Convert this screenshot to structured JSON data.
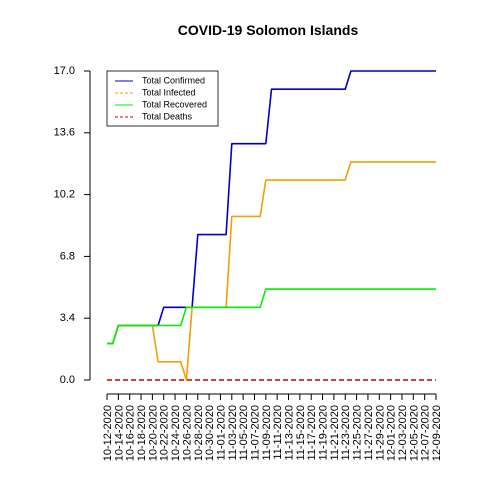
{
  "chart_data": {
    "type": "line",
    "title": "COVID-19 Solomon Islands",
    "xlabel": "",
    "ylabel": "",
    "ylim": [
      0,
      17
    ],
    "yticks": [
      "0.0",
      "3.4",
      "6.8",
      "10.2",
      "13.6",
      "17.0"
    ],
    "x_tick_labels": [
      "10-12-2020",
      "10-14-2020",
      "10-16-2020",
      "10-18-2020",
      "10-20-2020",
      "10-22-2020",
      "10-24-2020",
      "10-26-2020",
      "10-28-2020",
      "10-30-2020",
      "11-01-2020",
      "11-03-2020",
      "11-05-2020",
      "11-07-2020",
      "11-09-2020",
      "11-11-2020",
      "11-13-2020",
      "11-15-2020",
      "11-17-2020",
      "11-19-2020",
      "11-21-2020",
      "11-23-2020",
      "11-25-2020",
      "11-27-2020",
      "11-29-2020",
      "12-01-2020",
      "12-03-2020",
      "12-05-2020",
      "12-07-2020",
      "12-09-2020"
    ],
    "grid": false,
    "legend_position": "top-left",
    "series": [
      {
        "name": "Total Confirmed",
        "color": "#0000cc",
        "dash": "solid",
        "x": [
          "10-12-2020",
          "10-13-2020",
          "10-14-2020",
          "10-19-2020",
          "10-20-2020",
          "10-21-2020",
          "10-22-2020",
          "10-23-2020",
          "10-24-2020",
          "10-25-2020",
          "10-26-2020",
          "10-27-2020",
          "10-28-2020",
          "10-29-2020",
          "10-30-2020",
          "10-31-2020",
          "11-01-2020",
          "11-02-2020",
          "11-03-2020",
          "11-04-2020",
          "11-05-2020",
          "11-06-2020",
          "11-07-2020",
          "11-08-2020",
          "11-09-2020",
          "11-10-2020",
          "11-11-2020",
          "11-12-2020",
          "11-13-2020",
          "11-14-2020",
          "11-15-2020",
          "11-16-2020",
          "11-17-2020",
          "11-18-2020",
          "11-19-2020",
          "11-20-2020",
          "11-21-2020",
          "11-22-2020",
          "11-23-2020",
          "11-24-2020",
          "11-25-2020",
          "12-09-2020"
        ],
        "values": [
          2,
          2,
          3,
          3,
          3,
          3,
          4,
          4,
          4,
          4,
          4,
          4,
          8,
          8,
          8,
          8,
          8,
          8,
          13,
          13,
          13,
          13,
          13,
          13,
          13,
          16,
          16,
          16,
          16,
          16,
          16,
          16,
          16,
          16,
          16,
          16,
          16,
          16,
          16,
          17,
          17,
          17
        ]
      },
      {
        "name": "Total Infected",
        "color": "#f0a000",
        "dash": "solid",
        "x": [
          "10-12-2020",
          "10-13-2020",
          "10-14-2020",
          "10-20-2020",
          "10-21-2020",
          "10-25-2020",
          "10-26-2020",
          "10-27-2020",
          "11-01-2020",
          "11-02-2020",
          "11-03-2020",
          "11-08-2020",
          "11-09-2020",
          "11-23-2020",
          "11-24-2020",
          "12-09-2020"
        ],
        "values": [
          2,
          2,
          3,
          3,
          1,
          1,
          0,
          4,
          4,
          4,
          9,
          9,
          11,
          11,
          12,
          12
        ]
      },
      {
        "name": "Total Recovered",
        "color": "#00ee00",
        "dash": "solid",
        "x": [
          "10-12-2020",
          "10-13-2020",
          "10-14-2020",
          "10-20-2020",
          "10-21-2020",
          "10-25-2020",
          "10-26-2020",
          "10-27-2020",
          "11-08-2020",
          "11-09-2020",
          "12-09-2020"
        ],
        "values": [
          2,
          2,
          3,
          3,
          3,
          3,
          4,
          4,
          4,
          5,
          5
        ]
      },
      {
        "name": "Total Deaths",
        "color": "#cc0000",
        "dash": "dashed",
        "x": [
          "10-12-2020",
          "12-09-2020"
        ],
        "values": [
          0,
          0
        ]
      }
    ]
  }
}
